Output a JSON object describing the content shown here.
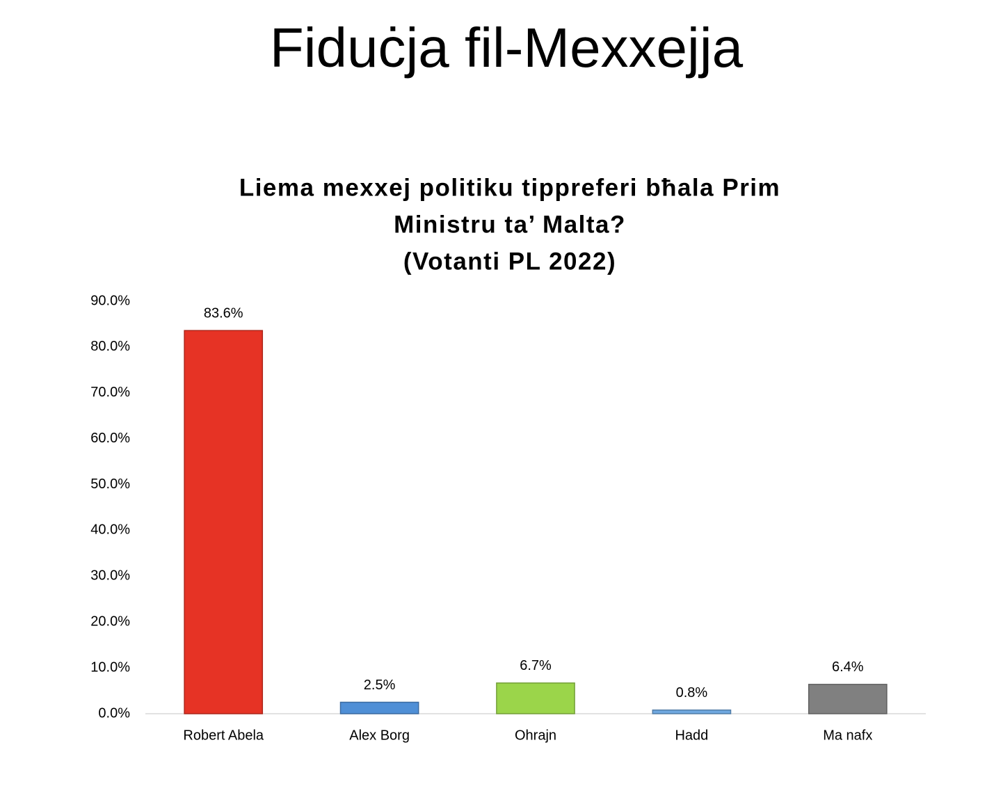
{
  "chart_data": {
    "type": "bar",
    "title": "Fiduċja fil-Mexxejja",
    "subtitle": [
      "Liema mexxej politiku tippreferi bħala Prim",
      "Ministru ta’ Malta?",
      "(Votanti PL 2022)"
    ],
    "categories": [
      "Robert Abela",
      "Alex Borg",
      "Ohrajn",
      "Hadd",
      "Ma nafx"
    ],
    "values": [
      83.6,
      2.5,
      6.7,
      0.8,
      6.4
    ],
    "value_labels": [
      "83.6%",
      "2.5%",
      "6.7%",
      "0.8%",
      "6.4%"
    ],
    "colors": [
      "#e63325",
      "#4f8fd6",
      "#9bd54a",
      "#6fa8e0",
      "#808080"
    ],
    "ylim": [
      0,
      90
    ],
    "yticks": [
      {
        "value": 0,
        "label": "0.0%"
      },
      {
        "value": 10,
        "label": "10.0%"
      },
      {
        "value": 20,
        "label": "20.0%"
      },
      {
        "value": 30,
        "label": "30.0%"
      },
      {
        "value": 40,
        "label": "40.0%"
      },
      {
        "value": 50,
        "label": "50.0%"
      },
      {
        "value": 60,
        "label": "60.0%"
      },
      {
        "value": 70,
        "label": "70.0%"
      },
      {
        "value": 80,
        "label": "80.0%"
      },
      {
        "value": 90,
        "label": "90.0%"
      }
    ],
    "grid": false
  }
}
